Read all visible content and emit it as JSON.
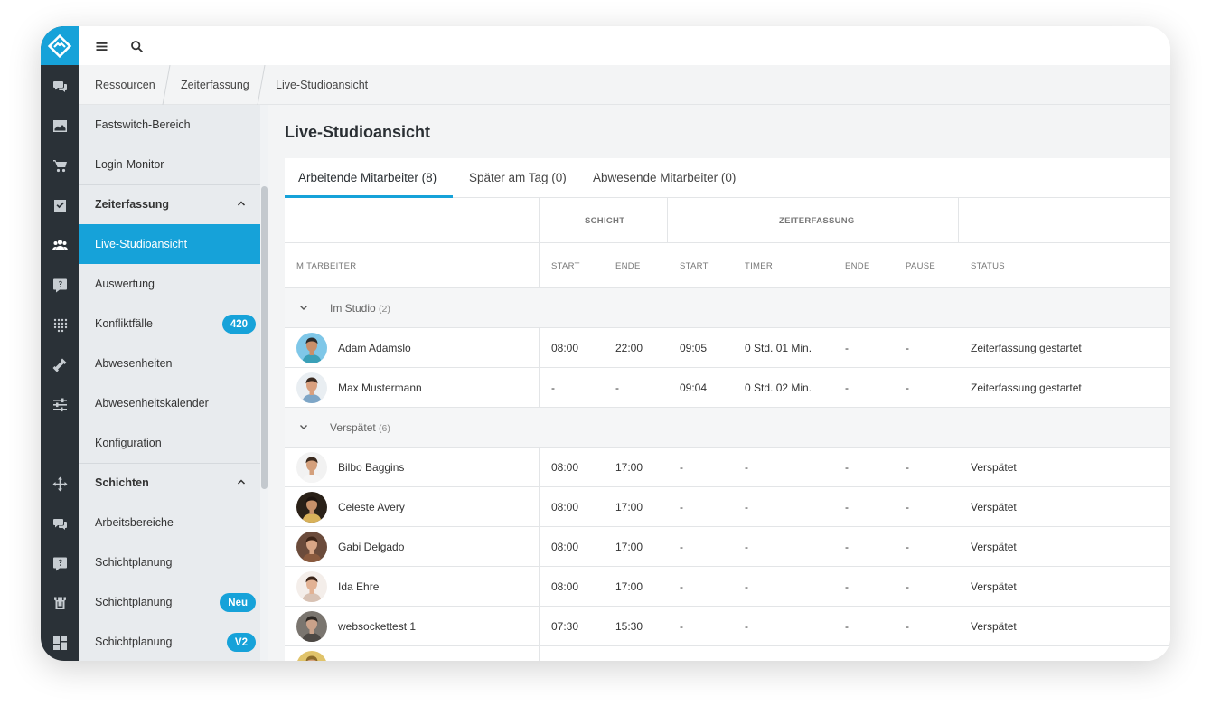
{
  "colors": {
    "accent": "#16a2d9",
    "rail": "#2a3137",
    "sidebar": "#e8ebee"
  },
  "rail": {
    "icons": [
      "chat-icon",
      "image-icon",
      "cart-icon",
      "checkbox-icon",
      "users-icon",
      "help-icon",
      "grid-dots-icon",
      "tools-icon",
      "sliders-icon",
      "move-icon",
      "chat-icon",
      "help-icon",
      "store-icon",
      "dashboard-icon"
    ]
  },
  "breadcrumb": [
    "Ressourcen",
    "Zeiterfassung",
    "Live-Studioansicht"
  ],
  "sidebar": {
    "items": [
      {
        "label": "Fastswitch-Bereich",
        "type": "item"
      },
      {
        "label": "Login-Monitor",
        "type": "item"
      },
      {
        "label": "Zeiterfassung",
        "type": "header"
      },
      {
        "label": "Live-Studioansicht",
        "type": "active"
      },
      {
        "label": "Auswertung",
        "type": "item"
      },
      {
        "label": "Konfliktfälle",
        "type": "item",
        "badge": "420"
      },
      {
        "label": "Abwesenheiten",
        "type": "item"
      },
      {
        "label": "Abwesenheitskalender",
        "type": "item"
      },
      {
        "label": "Konfiguration",
        "type": "item"
      },
      {
        "label": "Schichten",
        "type": "header"
      },
      {
        "label": "Arbeitsbereiche",
        "type": "item"
      },
      {
        "label": "Schichtplanung",
        "type": "item"
      },
      {
        "label": "Schichtplanung",
        "type": "item",
        "badge": "Neu"
      },
      {
        "label": "Schichtplanung",
        "type": "item",
        "badge": "V2"
      }
    ]
  },
  "page": {
    "title": "Live-Studioansicht"
  },
  "tabs": [
    "Arbeitende Mitarbeiter (8)",
    "Später am Tag (0)",
    "Abwesende Mitarbeiter (0)"
  ],
  "table": {
    "groups_header": {
      "shift": "SCHICHT",
      "time": "ZEITERFASSUNG"
    },
    "columns": [
      "MITARBEITER",
      "START",
      "ENDE",
      "START",
      "TIMER",
      "ENDE",
      "PAUSE",
      "STATUS"
    ],
    "sections": [
      {
        "label": "Im Studio",
        "count": "(2)",
        "rows": [
          {
            "name": "Adam Adamslo",
            "shift_start": "08:00",
            "shift_end": "22:00",
            "start": "09:05",
            "timer": "0 Std. 01 Min.",
            "end": "-",
            "pause": "-",
            "status": "Zeiterfassung gestartet",
            "avatar": {
              "bg": "#7fc7e8",
              "skin": "#c98f6a",
              "hair": "#2b2b2b",
              "shirt": "#3aa0b8"
            }
          },
          {
            "name": "Max Mustermann",
            "shift_start": "-",
            "shift_end": "-",
            "start": "09:04",
            "timer": "0 Std. 02 Min.",
            "end": "-",
            "pause": "-",
            "status": "Zeiterfassung gestartet",
            "avatar": {
              "bg": "#e9eef2",
              "skin": "#d9a07f",
              "hair": "#3a2a20",
              "shirt": "#7ea6c7"
            }
          }
        ]
      },
      {
        "label": "Verspätet",
        "count": "(6)",
        "rows": [
          {
            "name": "Bilbo Baggins",
            "shift_start": "08:00",
            "shift_end": "17:00",
            "start": "-",
            "timer": "-",
            "end": "-",
            "pause": "-",
            "status": "Verspätet",
            "avatar": {
              "bg": "#f2f2f2",
              "skin": "#d4a07c",
              "hair": "#3b2a1e",
              "shirt": "#f5f5f5"
            }
          },
          {
            "name": "Celeste Avery",
            "shift_start": "08:00",
            "shift_end": "17:00",
            "start": "-",
            "timer": "-",
            "end": "-",
            "pause": "-",
            "status": "Verspätet",
            "avatar": {
              "bg": "#2a2118",
              "skin": "#c8926a",
              "hair": "#1e1510",
              "shirt": "#d9b25a"
            }
          },
          {
            "name": "Gabi Delgado",
            "shift_start": "08:00",
            "shift_end": "17:00",
            "start": "-",
            "timer": "-",
            "end": "-",
            "pause": "-",
            "status": "Verspätet",
            "avatar": {
              "bg": "#6b4b3b",
              "skin": "#d9a686",
              "hair": "#3d2417",
              "shirt": "#8a5a3e"
            }
          },
          {
            "name": "Ida Ehre",
            "shift_start": "08:00",
            "shift_end": "17:00",
            "start": "-",
            "timer": "-",
            "end": "-",
            "pause": "-",
            "status": "Verspätet",
            "avatar": {
              "bg": "#f4eeea",
              "skin": "#e2b294",
              "hair": "#3a2418",
              "shirt": "#d8c2b4"
            }
          },
          {
            "name": "websockettest 1",
            "shift_start": "07:30",
            "shift_end": "15:30",
            "start": "-",
            "timer": "-",
            "end": "-",
            "pause": "-",
            "status": "Verspätet",
            "avatar": {
              "bg": "#7a756f",
              "skin": "#caa28a",
              "hair": "#2b2622",
              "shirt": "#4d4945"
            }
          },
          {
            "name": "",
            "shift_start": "",
            "shift_end": "",
            "start": "",
            "timer": "",
            "end": "",
            "pause": "",
            "status": "",
            "avatar": {
              "bg": "#e0c36a",
              "skin": "#d8a57f",
              "hair": "#8a6a2a",
              "shirt": "#c99e3a"
            }
          }
        ]
      }
    ]
  }
}
